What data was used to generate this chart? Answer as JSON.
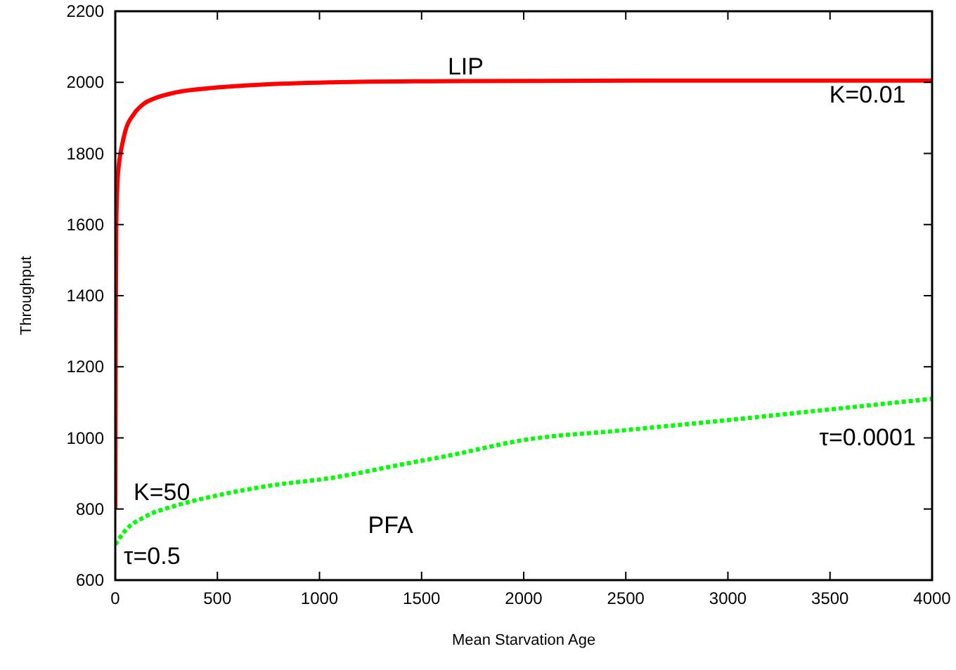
{
  "chart_data": {
    "type": "line",
    "xlabel": "Mean Starvation Age",
    "ylabel": "Throughput",
    "xlim": [
      0,
      4000
    ],
    "ylim": [
      600,
      2200
    ],
    "xticks": [
      0,
      500,
      1000,
      1500,
      2000,
      2500,
      3000,
      3500,
      4000
    ],
    "yticks": [
      600,
      800,
      1000,
      1200,
      1400,
      1600,
      1800,
      2000,
      2200
    ],
    "grid": false,
    "marker": "none",
    "series": [
      {
        "color": "#ff0000",
        "line_style": "solid",
        "x": [
          0,
          2,
          5,
          10,
          20,
          32,
          50,
          90,
          140,
          193,
          300,
          490,
          700,
          1066,
          1500,
          2000,
          3000,
          4000
        ],
        "values": [
          800,
          1300,
          1600,
          1710,
          1780,
          1820,
          1865,
          1910,
          1940,
          1955,
          1972,
          1985,
          1993,
          2000,
          2003,
          2004,
          2005,
          2005
        ]
      },
      {
        "color": "#00ff00",
        "line_style": "dotted",
        "x": [
          0,
          50,
          145,
          300,
          490,
          750,
          1066,
          1400,
          1640,
          2000,
          2500,
          3000,
          3500,
          4000
        ],
        "values": [
          700,
          740,
          778,
          810,
          837,
          865,
          888,
          925,
          951,
          994,
          1022,
          1050,
          1080,
          1110
        ]
      }
    ],
    "annotations": [
      "LIP",
      "K=0.01",
      "K=50",
      "τ=0.5",
      "τ=0.0001",
      "PFA"
    ]
  }
}
